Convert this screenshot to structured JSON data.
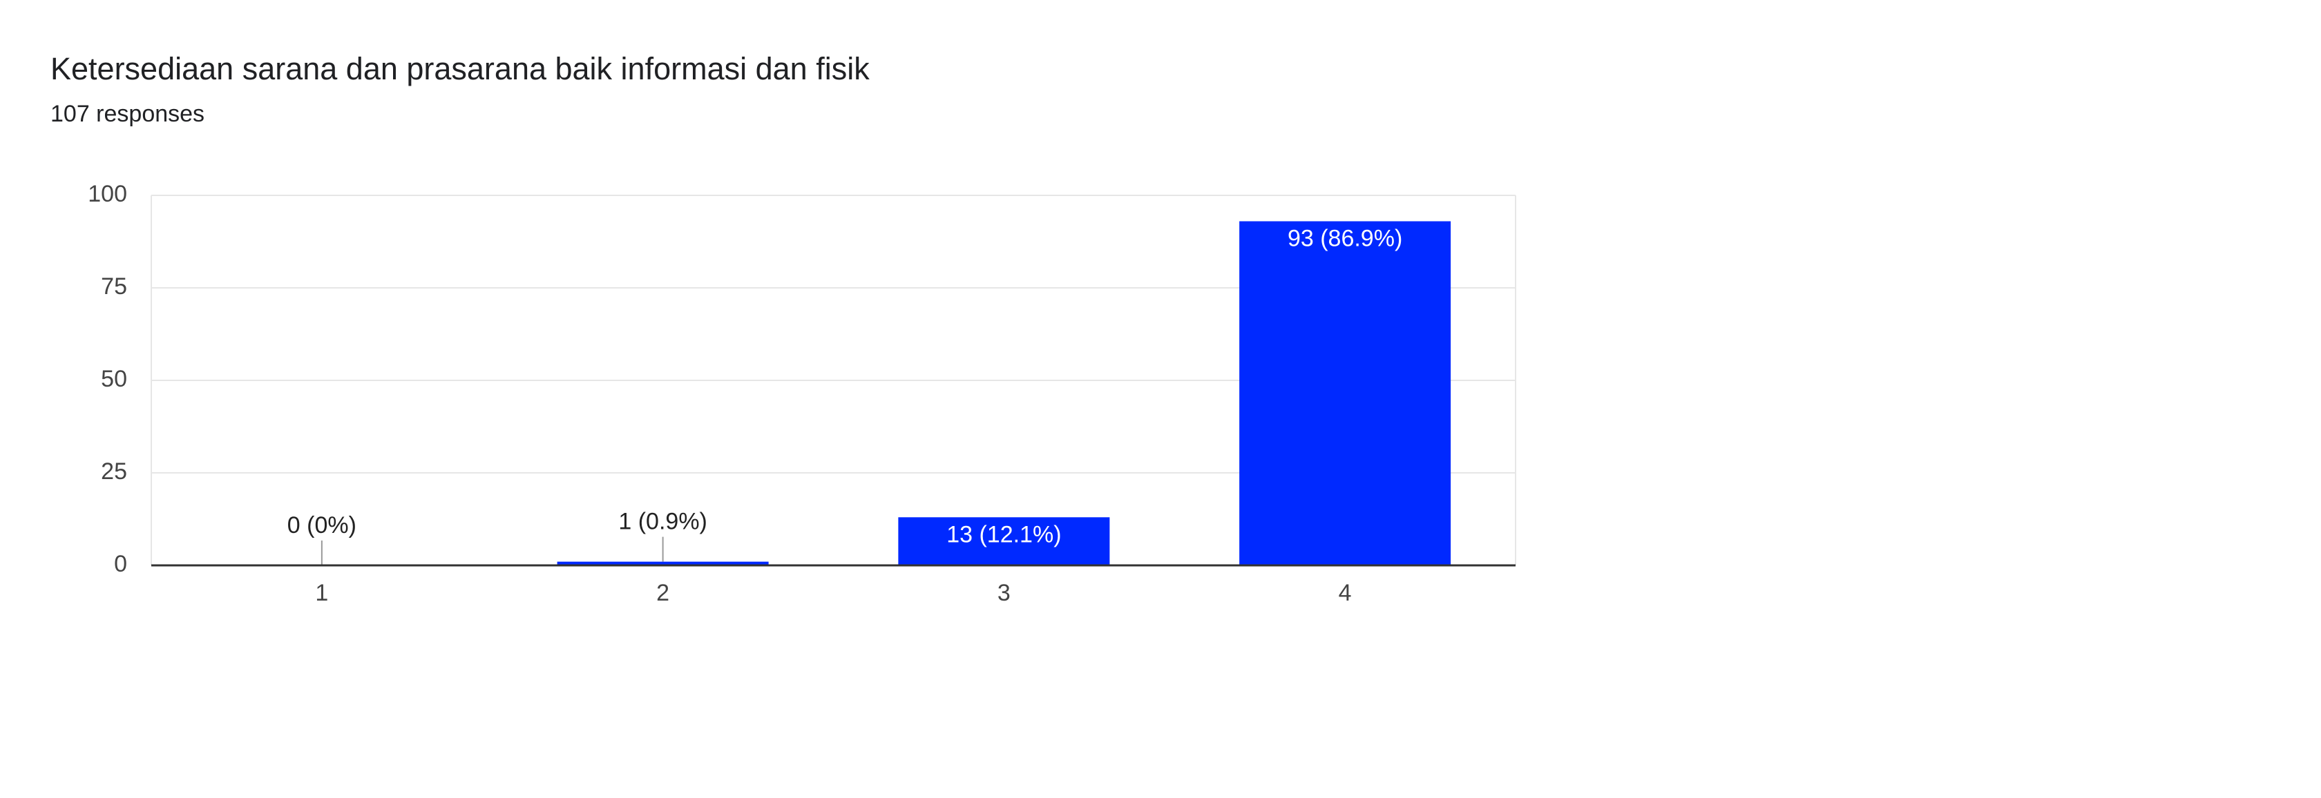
{
  "chart_data": {
    "type": "bar",
    "title": "Ketersediaan sarana dan prasarana baik informasi dan fisik",
    "subtitle": "107 responses",
    "categories": [
      "1",
      "2",
      "3",
      "4"
    ],
    "values": [
      0,
      1,
      13,
      93
    ],
    "value_labels": [
      "0 (0%)",
      "1 (0.9%)",
      "13 (12.1%)",
      "93 (86.9%)"
    ],
    "color": "#0029ff",
    "ylim": [
      0,
      100
    ],
    "yticks": [
      0,
      25,
      50,
      75,
      100
    ],
    "grid": true
  }
}
